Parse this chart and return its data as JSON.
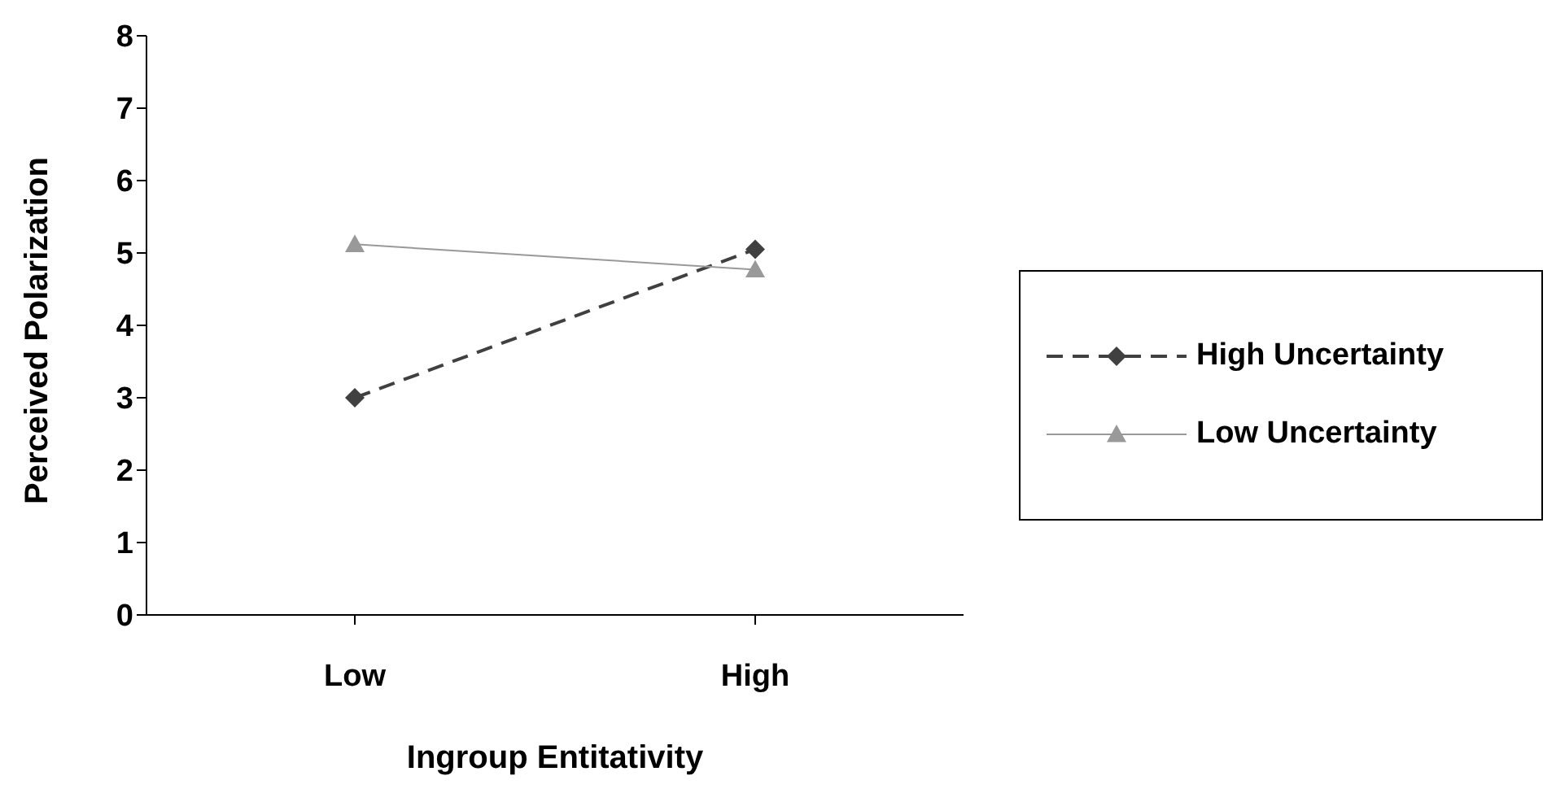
{
  "chart_data": {
    "type": "line",
    "xlabel": "Ingroup Entitativity",
    "ylabel": "Perceived Polarization",
    "categories": [
      "Low",
      "High"
    ],
    "series": [
      {
        "name": "High Uncertainty",
        "color": "#404040",
        "values": [
          3.0,
          5.05
        ],
        "marker": "diamond",
        "line_style": "dashed"
      },
      {
        "name": "Low Uncertainty",
        "color": "#999999",
        "values": [
          5.12,
          4.77
        ],
        "marker": "triangle",
        "line_style": "solid"
      }
    ],
    "ylim": [
      0,
      8
    ],
    "yticks": [
      0,
      1,
      2,
      3,
      4,
      5,
      6,
      7,
      8
    ],
    "grid": false,
    "legend": "right"
  }
}
